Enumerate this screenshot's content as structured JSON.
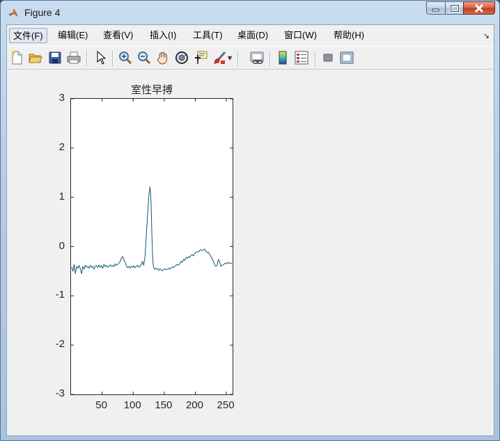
{
  "window": {
    "title": "Figure 4"
  },
  "menubar": {
    "items": [
      {
        "label": "文件(F)"
      },
      {
        "label": "编辑(E)"
      },
      {
        "label": "查看(V)"
      },
      {
        "label": "插入(I)"
      },
      {
        "label": "工具(T)"
      },
      {
        "label": "桌面(D)"
      },
      {
        "label": "窗口(W)"
      },
      {
        "label": "帮助(H)"
      }
    ]
  },
  "toolbar": {
    "icons": [
      "new-figure-icon",
      "open-file-icon",
      "save-icon",
      "print-icon",
      "pointer-icon",
      "zoom-in-icon",
      "zoom-out-icon",
      "pan-hand-icon",
      "rotate-3d-icon",
      "data-cursor-icon",
      "brush-icon",
      "link-plot-icon",
      "colorbar-icon",
      "legend-icon",
      "hide-plot-tools-icon",
      "show-plot-tools-icon"
    ]
  },
  "colors": {
    "line": "#0d5c70",
    "axes": "#262626"
  },
  "chart_data": {
    "type": "line",
    "title": "室性早搏",
    "xlabel": "",
    "ylabel": "",
    "xlim": [
      0,
      260
    ],
    "ylim": [
      -3,
      3
    ],
    "xticks": [
      50,
      100,
      150,
      200,
      250
    ],
    "yticks": [
      3,
      2,
      1,
      0,
      -1,
      -2,
      -3
    ],
    "grid": false,
    "series": [
      {
        "x": [
          1,
          3,
          5,
          7,
          9,
          11,
          13,
          15,
          17,
          19,
          21,
          23,
          25,
          27,
          29,
          31,
          33,
          35,
          37,
          39,
          41,
          43,
          45,
          47,
          49,
          51,
          53,
          55,
          57,
          59,
          61,
          63,
          65,
          67,
          69,
          71,
          73,
          75,
          77,
          79,
          81,
          83,
          85,
          87,
          89,
          91,
          93,
          95,
          97,
          99,
          101,
          103,
          105,
          107,
          109,
          111,
          113,
          115,
          117,
          119,
          121,
          123,
          125,
          127,
          128,
          129,
          130,
          131,
          132,
          133,
          134,
          135,
          137,
          139,
          141,
          143,
          145,
          147,
          149,
          151,
          153,
          155,
          157,
          159,
          161,
          163,
          165,
          167,
          169,
          171,
          173,
          175,
          177,
          179,
          181,
          183,
          185,
          187,
          189,
          191,
          193,
          195,
          197,
          199,
          201,
          203,
          205,
          207,
          209,
          211,
          213,
          215,
          217,
          219,
          221,
          223,
          225,
          227,
          229,
          231,
          233,
          235,
          237,
          239,
          241,
          243,
          245,
          247,
          249,
          251,
          253,
          255,
          257,
          259
        ],
        "y": [
          -0.42,
          -0.5,
          -0.36,
          -0.55,
          -0.4,
          -0.44,
          -0.38,
          -0.45,
          -0.55,
          -0.4,
          -0.46,
          -0.38,
          -0.42,
          -0.4,
          -0.44,
          -0.38,
          -0.42,
          -0.4,
          -0.46,
          -0.4,
          -0.38,
          -0.43,
          -0.37,
          -0.42,
          -0.39,
          -0.44,
          -0.36,
          -0.41,
          -0.38,
          -0.42,
          -0.4,
          -0.37,
          -0.4,
          -0.38,
          -0.41,
          -0.35,
          -0.38,
          -0.36,
          -0.34,
          -0.3,
          -0.24,
          -0.2,
          -0.26,
          -0.32,
          -0.38,
          -0.43,
          -0.4,
          -0.44,
          -0.4,
          -0.42,
          -0.39,
          -0.43,
          -0.4,
          -0.38,
          -0.42,
          -0.4,
          -0.36,
          -0.3,
          -0.38,
          -0.2,
          0.2,
          0.6,
          1.0,
          1.21,
          1.1,
          0.8,
          0.3,
          -0.1,
          -0.35,
          -0.42,
          -0.45,
          -0.46,
          -0.44,
          -0.46,
          -0.48,
          -0.45,
          -0.47,
          -0.49,
          -0.47,
          -0.45,
          -0.47,
          -0.46,
          -0.44,
          -0.46,
          -0.43,
          -0.41,
          -0.43,
          -0.4,
          -0.38,
          -0.36,
          -0.38,
          -0.34,
          -0.3,
          -0.32,
          -0.26,
          -0.28,
          -0.22,
          -0.24,
          -0.2,
          -0.22,
          -0.18,
          -0.16,
          -0.19,
          -0.14,
          -0.12,
          -0.1,
          -0.11,
          -0.08,
          -0.06,
          -0.08,
          -0.07,
          -0.05,
          -0.1,
          -0.12,
          -0.11,
          -0.16,
          -0.2,
          -0.24,
          -0.3,
          -0.36,
          -0.4,
          -0.38,
          -0.26,
          -0.3,
          -0.4,
          -0.38,
          -0.37,
          -0.35,
          -0.33,
          -0.35,
          -0.32,
          -0.34,
          -0.33,
          -0.35
        ]
      }
    ]
  }
}
